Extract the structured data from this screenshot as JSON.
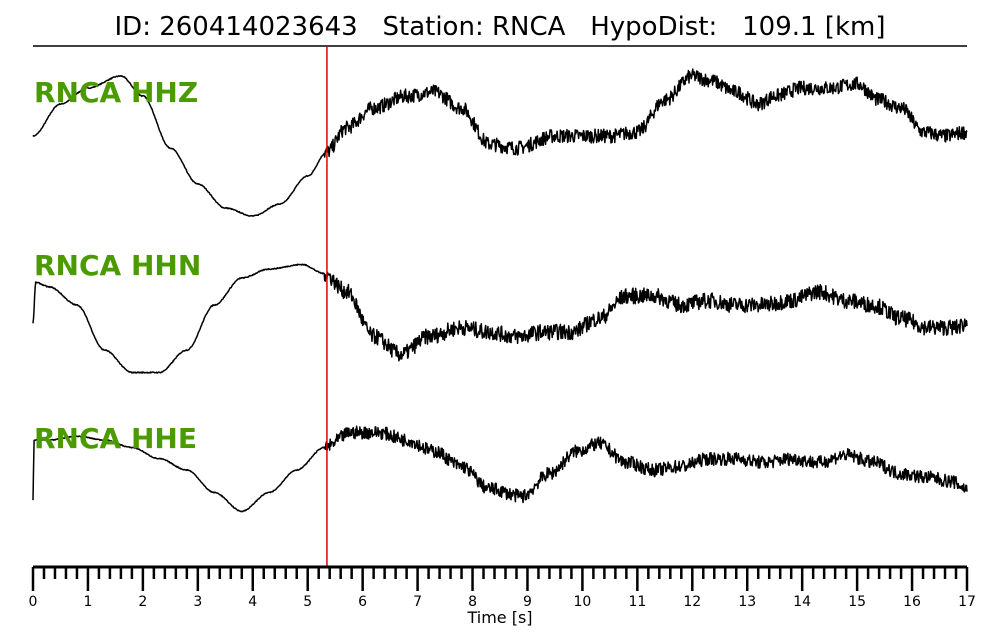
{
  "header": {
    "id_label": "ID:",
    "id_value": "260414023643",
    "station_label": "Station:",
    "station_value": "RNCA",
    "hypodist_label": "HypoDist:",
    "hypodist_value": "109.1 [km]"
  },
  "colors": {
    "trace": "#000000",
    "label": "#4a9a00",
    "pick_line": "#e00000"
  },
  "chart_data": {
    "type": "line",
    "title": "ID: 260414023643   Station: RNCA   HypoDist:   109.1 [km]",
    "xlabel": "Time [s]",
    "ylabel": "",
    "xlim": [
      0,
      17
    ],
    "x_ticks": [
      0,
      1,
      2,
      3,
      4,
      5,
      6,
      7,
      8,
      9,
      10,
      11,
      12,
      13,
      14,
      15,
      16,
      17
    ],
    "x_minor_step": 0.2,
    "pick_time": 5.35,
    "grid": false,
    "series": [
      {
        "name": "RNCA HHZ",
        "x": [
          0,
          0.5,
          1.0,
          1.6,
          2.0,
          2.5,
          3.0,
          3.5,
          4.0,
          4.5,
          5.0,
          5.35,
          5.7,
          6.2,
          6.8,
          7.3,
          7.8,
          8.3,
          8.8,
          9.5,
          10.0,
          10.5,
          11.0,
          11.5,
          12.0,
          12.3,
          12.8,
          13.2,
          13.5,
          14.0,
          14.5,
          15.0,
          15.4,
          15.8,
          16.2,
          16.6,
          17.0
        ],
        "y": [
          0.05,
          0.45,
          0.65,
          0.8,
          0.55,
          -0.1,
          -0.55,
          -0.85,
          -0.95,
          -0.8,
          -0.45,
          -0.15,
          0.15,
          0.4,
          0.55,
          0.6,
          0.4,
          -0.05,
          -0.1,
          0.05,
          0.05,
          0.05,
          0.1,
          0.5,
          0.8,
          0.75,
          0.6,
          0.45,
          0.55,
          0.65,
          0.65,
          0.7,
          0.5,
          0.4,
          0.1,
          0.05,
          0.1
        ],
        "noise": 0.04
      },
      {
        "name": "RNCA HHN",
        "x": [
          0,
          0.05,
          0.3,
          0.8,
          1.3,
          1.8,
          2.3,
          2.8,
          3.3,
          3.8,
          4.3,
          4.9,
          5.3,
          5.7,
          6.2,
          6.7,
          7.2,
          7.8,
          8.3,
          8.8,
          9.3,
          9.8,
          10.3,
          10.8,
          11.3,
          11.8,
          12.3,
          12.8,
          13.3,
          13.8,
          14.3,
          14.8,
          15.3,
          15.8,
          16.3,
          16.8,
          17.0
        ],
        "y": [
          -0.2,
          0.25,
          0.2,
          0.0,
          -0.5,
          -0.75,
          -0.75,
          -0.5,
          0.0,
          0.3,
          0.4,
          0.45,
          0.35,
          0.15,
          -0.35,
          -0.55,
          -0.35,
          -0.25,
          -0.3,
          -0.35,
          -0.3,
          -0.3,
          -0.15,
          0.1,
          0.1,
          0.0,
          0.05,
          0.0,
          0.0,
          0.05,
          0.15,
          0.05,
          0.0,
          -0.15,
          -0.25,
          -0.25,
          -0.2
        ],
        "noise": 0.04
      },
      {
        "name": "RNCA HHE",
        "x": [
          0,
          0.02,
          0.3,
          0.8,
          1.3,
          1.8,
          2.3,
          2.8,
          3.3,
          3.8,
          4.3,
          4.8,
          5.3,
          5.8,
          6.3,
          6.8,
          7.3,
          7.8,
          8.3,
          8.9,
          9.4,
          9.9,
          10.3,
          10.8,
          11.3,
          11.8,
          12.3,
          12.8,
          13.3,
          13.8,
          14.3,
          14.8,
          15.3,
          15.8,
          16.3,
          16.7,
          17.0
        ],
        "y": [
          -0.6,
          0.2,
          0.2,
          0.25,
          0.2,
          0.1,
          -0.05,
          -0.2,
          -0.5,
          -0.75,
          -0.5,
          -0.2,
          0.1,
          0.3,
          0.3,
          0.2,
          0.05,
          -0.15,
          -0.45,
          -0.55,
          -0.25,
          0.05,
          0.15,
          -0.1,
          -0.2,
          -0.15,
          -0.05,
          -0.05,
          -0.1,
          -0.05,
          -0.1,
          0.0,
          -0.1,
          -0.25,
          -0.3,
          -0.35,
          -0.45
        ],
        "noise": 0.04
      }
    ]
  }
}
